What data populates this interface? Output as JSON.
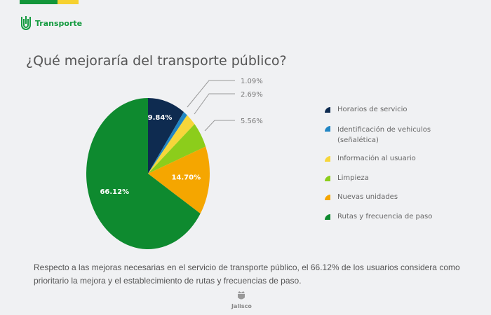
{
  "header": {
    "brand": "Transporte",
    "brand_color": "#139a3e",
    "stripe_colors": [
      "#13963a",
      "#f6d12f"
    ]
  },
  "footer": {
    "seal_text": "Jalisco"
  },
  "description": "Respecto a las mejoras necesarias en el servicio de transporte público, el 66.12% de los usuarios considera como prioritario la mejora y el establecimiento de rutas y frecuencias de paso.",
  "chart_data": {
    "type": "pie",
    "title": "¿Qué mejoraría del transporte público?",
    "start": "12 o'clock, clockwise",
    "legend_position": "right",
    "slices": [
      {
        "name": "Horarios de servicio",
        "value": 9.84,
        "label": "9.84%",
        "color": "#0e2b50"
      },
      {
        "name": "Identificación de vehiculos (señalética)",
        "value": 1.09,
        "label": "1.09%",
        "color": "#2186c4"
      },
      {
        "name": "Información al usuario",
        "value": 2.69,
        "label": "2.69%",
        "color": "#f6d63a"
      },
      {
        "name": "Limpieza",
        "value": 5.56,
        "label": "5.56%",
        "color": "#8ccd1b"
      },
      {
        "name": "Nuevas unidades",
        "value": 14.7,
        "label": "14.70%",
        "color": "#f5a600"
      },
      {
        "name": "Rutas y frecuencia de paso",
        "value": 66.12,
        "label": "66.12%",
        "color": "#0e8a2f"
      }
    ]
  }
}
